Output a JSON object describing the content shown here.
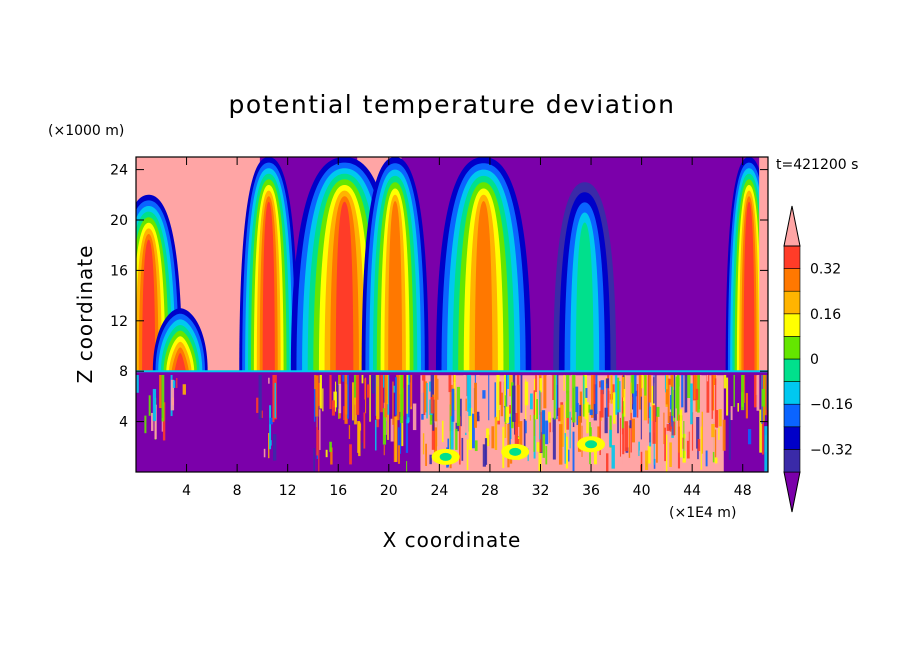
{
  "chart_data": {
    "type": "heatmap",
    "title": "potential temperature deviation",
    "xlabel": "X coordinate",
    "ylabel": "Z coordinate",
    "x_unit": "(×1E4 m)",
    "y_unit": "(×1000 m)",
    "time_label": "t=421200 s",
    "xlim": [
      0,
      50
    ],
    "ylim": [
      0,
      25
    ],
    "x_ticks": [
      4,
      8,
      12,
      16,
      20,
      24,
      28,
      32,
      36,
      40,
      44,
      48
    ],
    "y_ticks": [
      4,
      8,
      12,
      16,
      20,
      24
    ],
    "colorbar": {
      "tick_labels": [
        "0.32",
        "0.16",
        "0",
        "−0.16",
        "−0.32"
      ],
      "tick_values": [
        0.32,
        0.16,
        0,
        -0.16,
        -0.32
      ],
      "levels": [
        -0.4,
        -0.32,
        -0.24,
        -0.16,
        -0.08,
        0,
        0.08,
        0.16,
        0.24,
        0.32,
        0.4
      ],
      "colors": [
        "#7b00aa",
        "#3a2aa8",
        "#0000c8",
        "#0a64ff",
        "#00c8f0",
        "#00e08c",
        "#64e600",
        "#ffff00",
        "#ffb400",
        "#ff7800",
        "#ff3c28",
        "#ffa5a5"
      ]
    },
    "tropopause_height": 8,
    "upper_plumes": [
      {
        "x": 1,
        "width": 1.5,
        "top": 22,
        "peak": "high"
      },
      {
        "x": 3.5,
        "width": 1.2,
        "top": 13,
        "peak": "high"
      },
      {
        "x": 10.5,
        "width": 1.3,
        "top": 25,
        "peak": "high"
      },
      {
        "x": 16.5,
        "width": 2.5,
        "top": 25,
        "peak": "high"
      },
      {
        "x": 20.5,
        "width": 1.5,
        "top": 25,
        "peak": "mid"
      },
      {
        "x": 27.5,
        "width": 2.2,
        "top": 25,
        "peak": "mid"
      },
      {
        "x": 35.5,
        "width": 1.4,
        "top": 23,
        "peak": "low"
      },
      {
        "x": 48.5,
        "width": 1.0,
        "top": 25,
        "peak": "high"
      }
    ]
  }
}
